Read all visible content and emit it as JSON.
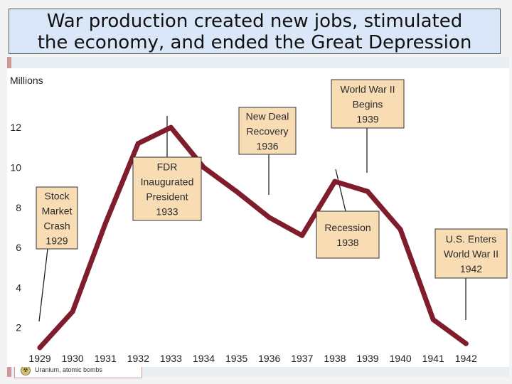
{
  "slide": {
    "title_line1": "War production created new jobs, stimulated",
    "title_line2": "the economy, and ended the Great Depression",
    "banner_text": "Uranium, atomic bombs"
  },
  "colors": {
    "line": "#7f1d2c",
    "callout_fill": "#f8dcb4",
    "title_fill": "#d9e7f8"
  },
  "chart_data": {
    "type": "line",
    "title": "",
    "ylabel": "Millions",
    "xlabel": "",
    "ylim": [
      0,
      13
    ],
    "yticks": [
      2,
      4,
      6,
      8,
      10,
      12
    ],
    "x": [
      "1929",
      "1930",
      "1931",
      "1932",
      "1933",
      "1934",
      "1935",
      "1936",
      "1937",
      "1938",
      "1939",
      "1940",
      "1941",
      "1942"
    ],
    "series": [
      {
        "values": [
          1.0,
          2.8,
          7.2,
          11.2,
          12.0,
          10.0,
          8.8,
          7.5,
          6.6,
          9.3,
          8.8,
          6.9,
          2.4,
          1.2
        ]
      }
    ],
    "grid": false,
    "annotations": [
      {
        "lines": [
          "Stock",
          "Market",
          "Crash",
          "1929"
        ],
        "x": "1929"
      },
      {
        "lines": [
          "FDR",
          "Inaugurated",
          "President",
          "1933"
        ],
        "x": "1933"
      },
      {
        "lines": [
          "New Deal",
          "Recovery",
          "1936"
        ],
        "x": "1936"
      },
      {
        "lines": [
          "World War II",
          "Begins",
          "1939"
        ],
        "x": "1939"
      },
      {
        "lines": [
          "Recession",
          "1938"
        ],
        "x": "1938"
      },
      {
        "lines": [
          "U.S. Enters",
          "World War II",
          "1942"
        ],
        "x": "1942"
      }
    ]
  }
}
